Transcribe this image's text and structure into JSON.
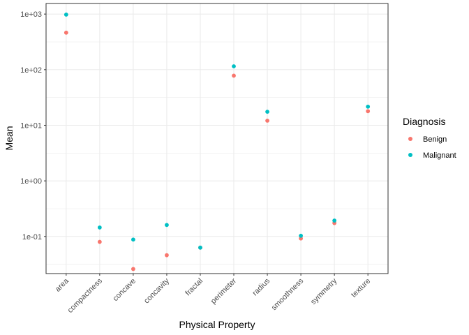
{
  "chart_data": {
    "type": "scatter",
    "title": "",
    "xlabel": "Physical Property",
    "ylabel": "Mean",
    "y_scale": "log10",
    "ylim": [
      0.0215,
      1550
    ],
    "categories": [
      "area",
      "compactness",
      "concave",
      "concavity",
      "fractal",
      "perimeter",
      "radius",
      "smoothness",
      "symmetry",
      "texture"
    ],
    "y_ticks": [
      {
        "value": 1000,
        "label": "1e+03"
      },
      {
        "value": 100,
        "label": "1e+02"
      },
      {
        "value": 10,
        "label": "1e+01"
      },
      {
        "value": 1,
        "label": "1e+00"
      },
      {
        "value": 0.1,
        "label": "1e-01"
      }
    ],
    "grid": true,
    "legend": {
      "title": "Diagnosis",
      "position": "right"
    },
    "series": [
      {
        "name": "Benign",
        "color": "#F8766D",
        "values": [
          463,
          0.08,
          0.026,
          0.046,
          0.063,
          78,
          12.1,
          0.092,
          0.174,
          17.9
        ]
      },
      {
        "name": "Malignant",
        "color": "#00BFC4",
        "values": [
          978,
          0.145,
          0.088,
          0.161,
          0.063,
          115,
          17.5,
          0.103,
          0.193,
          21.6
        ]
      }
    ]
  }
}
